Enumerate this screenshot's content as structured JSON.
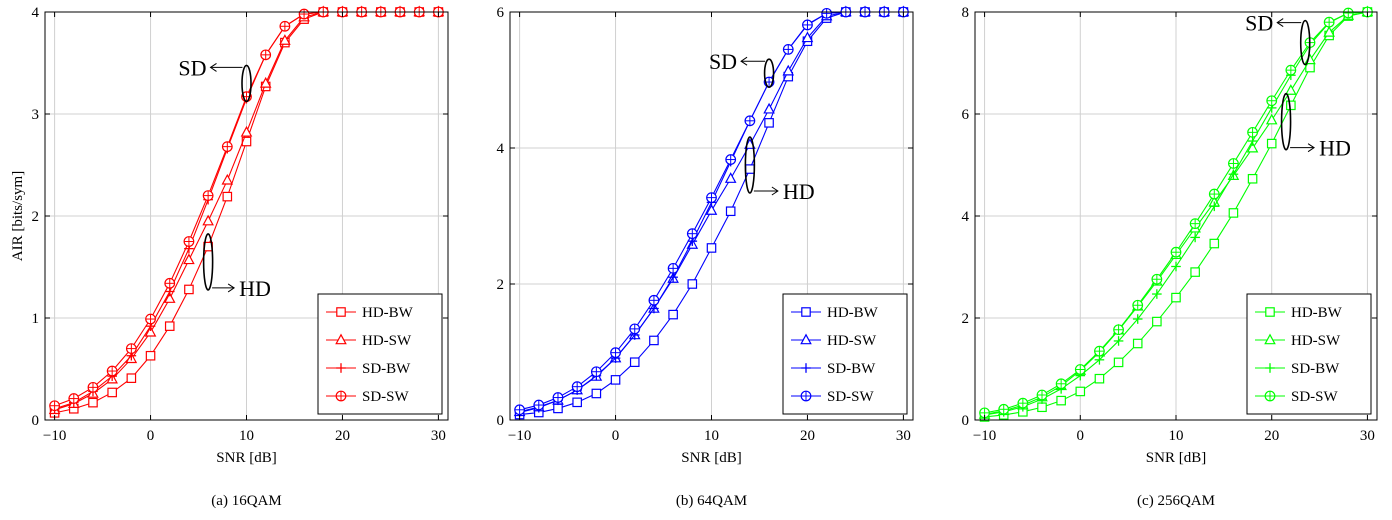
{
  "chart_data": [
    {
      "type": "line",
      "caption": "(a) 16QAM",
      "xlabel": "SNR [dB]",
      "ylabel": "AIR [bits/sym]",
      "xlim": [
        -11,
        31
      ],
      "ylim": [
        0,
        4
      ],
      "xticks": [
        -10,
        0,
        10,
        20,
        30
      ],
      "yticks": [
        0,
        1,
        2,
        3,
        4
      ],
      "grid": true,
      "color": "#ff0000",
      "legend_position": "bottom-right",
      "x": [
        -10,
        -8,
        -6,
        -4,
        -2,
        0,
        2,
        4,
        6,
        8,
        10,
        12,
        14,
        16,
        18,
        20,
        22,
        24,
        26,
        28,
        30
      ],
      "series": [
        {
          "name": "HD-BW",
          "marker": "square",
          "values": [
            0.07,
            0.11,
            0.17,
            0.27,
            0.41,
            0.63,
            0.92,
            1.28,
            1.7,
            2.19,
            2.73,
            3.27,
            3.7,
            3.93,
            4.0,
            4.0,
            4.0,
            4.0,
            4.0,
            4.0,
            4.0
          ]
        },
        {
          "name": "HD-SW",
          "marker": "triangle",
          "values": [
            0.1,
            0.16,
            0.26,
            0.4,
            0.6,
            0.86,
            1.19,
            1.57,
            1.95,
            2.35,
            2.82,
            3.3,
            3.72,
            3.95,
            4.0,
            4.0,
            4.0,
            4.0,
            4.0,
            4.0,
            4.0
          ]
        },
        {
          "name": "SD-BW",
          "marker": "plus",
          "values": [
            0.11,
            0.17,
            0.28,
            0.43,
            0.63,
            0.92,
            1.26,
            1.68,
            2.16,
            2.66,
            3.15,
            3.58,
            3.86,
            3.98,
            4.0,
            4.0,
            4.0,
            4.0,
            4.0,
            4.0,
            4.0
          ]
        },
        {
          "name": "SD-SW",
          "marker": "circle",
          "values": [
            0.14,
            0.21,
            0.32,
            0.48,
            0.7,
            0.99,
            1.34,
            1.75,
            2.2,
            2.68,
            3.17,
            3.58,
            3.86,
            3.98,
            4.0,
            4.0,
            4.0,
            4.0,
            4.0,
            4.0,
            4.0
          ]
        }
      ],
      "annotations": [
        {
          "text": "SD",
          "x": 10,
          "y": 3.3
        },
        {
          "text": "HD",
          "x": 6,
          "y": 1.55
        }
      ]
    },
    {
      "type": "line",
      "caption": "(b) 64QAM",
      "xlabel": "SNR [dB]",
      "ylabel": "",
      "xlim": [
        -11,
        31
      ],
      "ylim": [
        0,
        6
      ],
      "xticks": [
        -10,
        0,
        10,
        20,
        30
      ],
      "yticks": [
        0,
        2,
        4,
        6
      ],
      "grid": true,
      "color": "#0000ff",
      "legend_position": "bottom-right",
      "x": [
        -10,
        -8,
        -6,
        -4,
        -2,
        0,
        2,
        4,
        6,
        8,
        10,
        12,
        14,
        16,
        18,
        20,
        22,
        24,
        26,
        28,
        30
      ],
      "series": [
        {
          "name": "HD-BW",
          "marker": "square",
          "values": [
            0.08,
            0.11,
            0.17,
            0.26,
            0.39,
            0.59,
            0.85,
            1.17,
            1.55,
            2.0,
            2.53,
            3.07,
            3.69,
            4.37,
            5.05,
            5.57,
            5.91,
            6.0,
            6.0,
            6.0,
            6.0
          ]
        },
        {
          "name": "HD-SW",
          "marker": "triangle",
          "values": [
            0.12,
            0.19,
            0.29,
            0.44,
            0.64,
            0.91,
            1.25,
            1.64,
            2.08,
            2.58,
            3.08,
            3.55,
            4.05,
            4.57,
            5.13,
            5.62,
            5.94,
            6.0,
            6.0,
            6.0,
            6.0
          ]
        },
        {
          "name": "SD-BW",
          "marker": "plus",
          "values": [
            0.11,
            0.18,
            0.29,
            0.44,
            0.65,
            0.91,
            1.25,
            1.64,
            2.1,
            2.63,
            3.2,
            3.8,
            4.4,
            4.97,
            5.45,
            5.82,
            5.98,
            6.0,
            6.0,
            6.0,
            6.0
          ]
        },
        {
          "name": "SD-SW",
          "marker": "circle",
          "values": [
            0.15,
            0.22,
            0.33,
            0.49,
            0.71,
            0.99,
            1.34,
            1.76,
            2.23,
            2.74,
            3.27,
            3.83,
            4.4,
            4.97,
            5.45,
            5.81,
            5.98,
            6.0,
            6.0,
            6.0,
            6.0
          ]
        }
      ],
      "annotations": [
        {
          "text": "SD",
          "x": 16,
          "y": 5.1
        },
        {
          "text": "HD",
          "x": 14,
          "y": 3.75
        }
      ]
    },
    {
      "type": "line",
      "caption": "(c) 256QAM",
      "xlabel": "SNR [dB]",
      "ylabel": "",
      "xlim": [
        -11,
        31
      ],
      "ylim": [
        0,
        8
      ],
      "xticks": [
        -10,
        0,
        10,
        20,
        30
      ],
      "yticks": [
        0,
        2,
        4,
        6,
        8
      ],
      "grid": true,
      "color": "#00ff00",
      "legend_position": "bottom-right",
      "x": [
        -10,
        -8,
        -6,
        -4,
        -2,
        0,
        2,
        4,
        6,
        8,
        10,
        12,
        14,
        16,
        18,
        20,
        22,
        24,
        26,
        28,
        30
      ],
      "series": [
        {
          "name": "HD-BW",
          "marker": "square",
          "values": [
            0.06,
            0.1,
            0.16,
            0.25,
            0.38,
            0.56,
            0.81,
            1.13,
            1.5,
            1.93,
            2.4,
            2.9,
            3.46,
            4.06,
            4.73,
            5.42,
            6.17,
            6.91,
            7.54,
            7.92,
            8.0
          ]
        },
        {
          "name": "HD-SW",
          "marker": "triangle",
          "values": [
            0.11,
            0.18,
            0.29,
            0.45,
            0.67,
            0.97,
            1.33,
            1.76,
            2.23,
            2.72,
            3.24,
            3.76,
            4.27,
            4.79,
            5.33,
            5.88,
            6.46,
            7.06,
            7.6,
            7.93,
            8.0
          ]
        },
        {
          "name": "SD-BW",
          "marker": "plus",
          "values": [
            0.1,
            0.16,
            0.26,
            0.41,
            0.61,
            0.87,
            1.18,
            1.55,
            1.98,
            2.47,
            3.01,
            3.58,
            4.19,
            4.82,
            5.47,
            6.12,
            6.76,
            7.36,
            7.79,
            7.98,
            8.0
          ]
        },
        {
          "name": "SD-SW",
          "marker": "circle",
          "values": [
            0.14,
            0.21,
            0.33,
            0.49,
            0.71,
            0.99,
            1.35,
            1.77,
            2.25,
            2.76,
            3.29,
            3.85,
            4.43,
            5.03,
            5.64,
            6.26,
            6.86,
            7.4,
            7.8,
            7.98,
            8.0
          ]
        }
      ],
      "annotations": [
        {
          "text": "SD",
          "x": 23.5,
          "y": 7.4
        },
        {
          "text": "HD",
          "x": 21.5,
          "y": 5.85
        }
      ]
    }
  ]
}
